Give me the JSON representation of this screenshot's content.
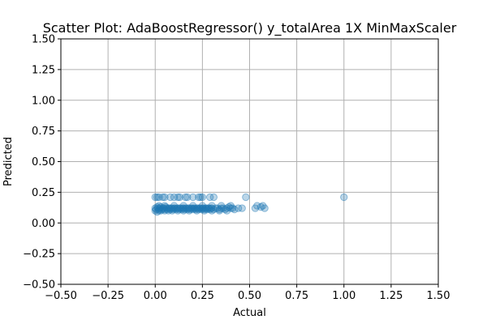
{
  "chart_data": {
    "type": "scatter",
    "title": "Scatter Plot: AdaBoostRegressor() y_totalArea 1X MinMaxScaler",
    "xlabel": "Actual",
    "ylabel": "Predicted",
    "xlim": [
      -0.5,
      1.5
    ],
    "ylim": [
      -0.5,
      1.5
    ],
    "x_ticks": [
      -0.5,
      -0.25,
      0.0,
      0.25,
      0.5,
      0.75,
      1.0,
      1.25,
      1.5
    ],
    "y_ticks": [
      -0.5,
      -0.25,
      0.0,
      0.25,
      0.5,
      0.75,
      1.0,
      1.25,
      1.5
    ],
    "x_tick_labels": [
      "−0.50",
      "−0.25",
      "0.00",
      "0.25",
      "0.50",
      "0.75",
      "1.00",
      "1.25",
      "1.50"
    ],
    "y_tick_labels": [
      "−0.50",
      "−0.25",
      "0.00",
      "0.25",
      "0.50",
      "0.75",
      "1.00",
      "1.25",
      "1.50"
    ],
    "grid": true,
    "marker_color": "#1f77b4",
    "marker_alpha": 0.3,
    "series": [
      {
        "points": [
          [
            0.0,
            0.12
          ],
          [
            0.005,
            0.11
          ],
          [
            0.01,
            0.13
          ],
          [
            0.015,
            0.12
          ],
          [
            0.02,
            0.11
          ],
          [
            0.025,
            0.12
          ],
          [
            0.03,
            0.13
          ],
          [
            0.035,
            0.11
          ],
          [
            0.04,
            0.12
          ],
          [
            0.045,
            0.12
          ],
          [
            0.05,
            0.11
          ],
          [
            0.055,
            0.13
          ],
          [
            0.06,
            0.12
          ],
          [
            0.065,
            0.11
          ],
          [
            0.07,
            0.12
          ],
          [
            0.075,
            0.12
          ],
          [
            0.08,
            0.11
          ],
          [
            0.085,
            0.12
          ],
          [
            0.09,
            0.12
          ],
          [
            0.095,
            0.11
          ],
          [
            0.1,
            0.12
          ],
          [
            0.105,
            0.12
          ],
          [
            0.11,
            0.11
          ],
          [
            0.115,
            0.12
          ],
          [
            0.12,
            0.12
          ],
          [
            0.125,
            0.11
          ],
          [
            0.13,
            0.12
          ],
          [
            0.135,
            0.12
          ],
          [
            0.14,
            0.11
          ],
          [
            0.145,
            0.12
          ],
          [
            0.15,
            0.12
          ],
          [
            0.155,
            0.11
          ],
          [
            0.16,
            0.12
          ],
          [
            0.165,
            0.12
          ],
          [
            0.17,
            0.11
          ],
          [
            0.175,
            0.12
          ],
          [
            0.18,
            0.12
          ],
          [
            0.185,
            0.11
          ],
          [
            0.19,
            0.12
          ],
          [
            0.195,
            0.12
          ],
          [
            0.2,
            0.11
          ],
          [
            0.205,
            0.12
          ],
          [
            0.21,
            0.12
          ],
          [
            0.215,
            0.11
          ],
          [
            0.22,
            0.12
          ],
          [
            0.225,
            0.12
          ],
          [
            0.23,
            0.11
          ],
          [
            0.235,
            0.12
          ],
          [
            0.24,
            0.12
          ],
          [
            0.245,
            0.11
          ],
          [
            0.25,
            0.12
          ],
          [
            0.255,
            0.12
          ],
          [
            0.26,
            0.11
          ],
          [
            0.265,
            0.12
          ],
          [
            0.27,
            0.12
          ],
          [
            0.275,
            0.11
          ],
          [
            0.28,
            0.12
          ],
          [
            0.285,
            0.12
          ],
          [
            0.29,
            0.11
          ],
          [
            0.295,
            0.12
          ],
          [
            0.3,
            0.12
          ],
          [
            0.31,
            0.11
          ],
          [
            0.32,
            0.12
          ],
          [
            0.33,
            0.12
          ],
          [
            0.34,
            0.11
          ],
          [
            0.35,
            0.12
          ],
          [
            0.36,
            0.12
          ],
          [
            0.37,
            0.11
          ],
          [
            0.38,
            0.12
          ],
          [
            0.39,
            0.13
          ],
          [
            0.4,
            0.12
          ],
          [
            0.41,
            0.12
          ],
          [
            0.42,
            0.11
          ],
          [
            0.44,
            0.12
          ],
          [
            0.46,
            0.12
          ],
          [
            0.0,
            0.1
          ],
          [
            0.01,
            0.09
          ],
          [
            0.02,
            0.1
          ],
          [
            0.03,
            0.1
          ],
          [
            0.05,
            0.1
          ],
          [
            0.07,
            0.1
          ],
          [
            0.09,
            0.1
          ],
          [
            0.12,
            0.1
          ],
          [
            0.15,
            0.1
          ],
          [
            0.18,
            0.1
          ],
          [
            0.22,
            0.1
          ],
          [
            0.26,
            0.1
          ],
          [
            0.3,
            0.1
          ],
          [
            0.34,
            0.1
          ],
          [
            0.38,
            0.1
          ],
          [
            0.02,
            0.14
          ],
          [
            0.05,
            0.14
          ],
          [
            0.1,
            0.14
          ],
          [
            0.15,
            0.14
          ],
          [
            0.2,
            0.14
          ],
          [
            0.25,
            0.14
          ],
          [
            0.3,
            0.14
          ],
          [
            0.35,
            0.14
          ],
          [
            0.4,
            0.14
          ],
          [
            0.0,
            0.21
          ],
          [
            0.01,
            0.21
          ],
          [
            0.02,
            0.21
          ],
          [
            0.04,
            0.21
          ],
          [
            0.05,
            0.21
          ],
          [
            0.08,
            0.21
          ],
          [
            0.1,
            0.21
          ],
          [
            0.12,
            0.21
          ],
          [
            0.13,
            0.21
          ],
          [
            0.16,
            0.21
          ],
          [
            0.17,
            0.21
          ],
          [
            0.2,
            0.21
          ],
          [
            0.23,
            0.21
          ],
          [
            0.24,
            0.21
          ],
          [
            0.25,
            0.21
          ],
          [
            0.29,
            0.21
          ],
          [
            0.31,
            0.21
          ],
          [
            0.48,
            0.21
          ],
          [
            0.53,
            0.12
          ],
          [
            0.54,
            0.14
          ],
          [
            0.56,
            0.13
          ],
          [
            0.57,
            0.14
          ],
          [
            0.58,
            0.12
          ],
          [
            1.0,
            0.21
          ]
        ]
      }
    ]
  }
}
